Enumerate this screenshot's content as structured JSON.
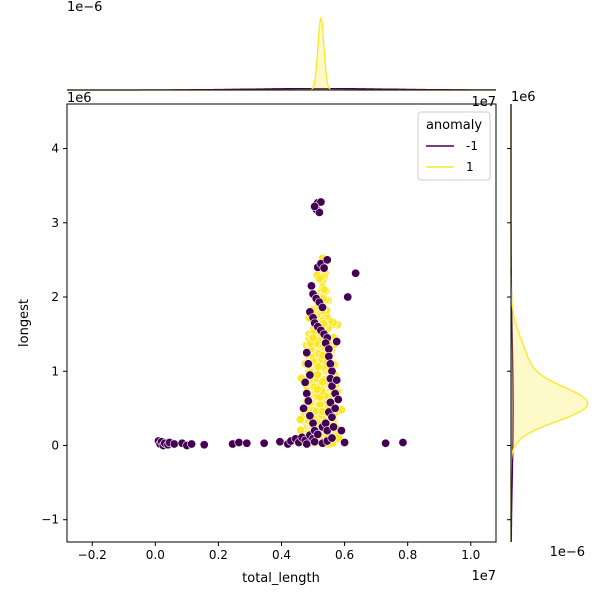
{
  "chart_data": {
    "type": "scatter",
    "subtype": "jointplot with marginal KDE",
    "title": "",
    "xlabel": "total_length",
    "ylabel": "longest",
    "xlim": [
      -0.28,
      1.08
    ],
    "ylim": [
      -1.3,
      4.6
    ],
    "x_offset_text": "1e7",
    "y_offset_text": "1e6",
    "top_marginal_offset_text": "1e−6",
    "right_marginal_offset_text": "1e−6",
    "right_marginal_y_offset_text": "1e6",
    "top_marginal_x_offset_text": "1e7",
    "xticks": [
      -0.2,
      0.0,
      0.2,
      0.4,
      0.6,
      0.8,
      1.0
    ],
    "xtick_labels": [
      "−0.2",
      "0.0",
      "0.2",
      "0.4",
      "0.6",
      "0.8",
      "1.0"
    ],
    "yticks": [
      -1,
      0,
      1,
      2,
      3,
      4
    ],
    "ytick_labels": [
      "−1",
      "0",
      "1",
      "2",
      "3",
      "4"
    ],
    "grid": false,
    "legend": {
      "title": "anomaly",
      "placement": "upper-right",
      "entries": [
        {
          "label": "-1",
          "color": "#440154"
        },
        {
          "label": "1",
          "color": "#fde725"
        }
      ]
    },
    "series": [
      {
        "name": "-1",
        "color": "#440154",
        "points": [
          [
            0.01,
            0.06
          ],
          [
            0.015,
            0.02
          ],
          [
            0.02,
            0.05
          ],
          [
            0.025,
            0.0
          ],
          [
            0.03,
            0.03
          ],
          [
            0.04,
            0.01
          ],
          [
            0.045,
            0.04
          ],
          [
            0.06,
            0.02
          ],
          [
            0.085,
            0.03
          ],
          [
            0.1,
            0.0
          ],
          [
            0.115,
            0.02
          ],
          [
            0.155,
            0.01
          ],
          [
            0.245,
            0.02
          ],
          [
            0.265,
            0.04
          ],
          [
            0.29,
            0.03
          ],
          [
            0.345,
            0.03
          ],
          [
            0.395,
            0.05
          ],
          [
            0.42,
            0.02
          ],
          [
            0.43,
            0.06
          ],
          [
            0.445,
            0.09
          ],
          [
            0.455,
            0.04
          ],
          [
            0.465,
            0.11
          ],
          [
            0.475,
            0.07
          ],
          [
            0.48,
            0.02
          ],
          [
            0.49,
            0.14
          ],
          [
            0.5,
            0.09
          ],
          [
            0.505,
            0.05
          ],
          [
            0.51,
            0.18
          ],
          [
            0.53,
            0.03
          ],
          [
            0.545,
            0.06
          ],
          [
            0.56,
            0.1
          ],
          [
            0.6,
            0.04
          ],
          [
            0.73,
            0.03
          ],
          [
            0.785,
            0.04
          ],
          [
            0.51,
            3.18
          ],
          [
            0.515,
            3.27
          ],
          [
            0.52,
            3.14
          ],
          [
            0.525,
            3.28
          ],
          [
            0.505,
            3.22
          ],
          [
            0.515,
            2.4
          ],
          [
            0.525,
            2.45
          ],
          [
            0.535,
            2.39
          ],
          [
            0.545,
            2.5
          ],
          [
            0.635,
            2.32
          ],
          [
            0.61,
            2.0
          ],
          [
            0.495,
            2.15
          ],
          [
            0.5,
            2.04
          ],
          [
            0.51,
            1.98
          ],
          [
            0.52,
            1.93
          ],
          [
            0.53,
            1.86
          ],
          [
            0.49,
            1.8
          ],
          [
            0.5,
            1.72
          ],
          [
            0.505,
            1.65
          ],
          [
            0.515,
            1.6
          ],
          [
            0.525,
            1.55
          ],
          [
            0.535,
            1.5
          ],
          [
            0.545,
            1.45
          ],
          [
            0.54,
            1.38
          ],
          [
            0.55,
            1.3
          ],
          [
            0.55,
            1.2
          ],
          [
            0.555,
            1.1
          ],
          [
            0.56,
            1.0
          ],
          [
            0.555,
            0.9
          ],
          [
            0.56,
            0.8
          ],
          [
            0.57,
            0.7
          ],
          [
            0.575,
            1.4
          ],
          [
            0.48,
            1.25
          ],
          [
            0.485,
            1.1
          ],
          [
            0.49,
            0.95
          ],
          [
            0.475,
            0.85
          ],
          [
            0.48,
            0.7
          ],
          [
            0.485,
            0.6
          ],
          [
            0.47,
            0.5
          ],
          [
            0.49,
            0.4
          ],
          [
            0.5,
            0.3
          ],
          [
            0.505,
            0.2
          ],
          [
            0.515,
            0.15
          ],
          [
            0.53,
            0.25
          ],
          [
            0.54,
            0.3
          ],
          [
            0.545,
            0.2
          ],
          [
            0.55,
            0.45
          ],
          [
            0.555,
            0.58
          ],
          [
            0.56,
            0.38
          ],
          [
            0.565,
            0.25
          ],
          [
            0.57,
            0.5
          ],
          [
            0.575,
            0.88
          ],
          [
            0.58,
            0.62
          ],
          [
            0.59,
            0.2
          ]
        ]
      },
      {
        "name": "1",
        "color": "#fde725",
        "clusters": [
          {
            "center": [
              0.525,
              0.7
            ],
            "spread": [
              0.022,
              0.4
            ],
            "count": 520,
            "seed": 7
          },
          {
            "center": [
              0.525,
              1.35
            ],
            "spread": [
              0.016,
              0.35
            ],
            "count": 120,
            "seed": 13
          },
          {
            "center": [
              0.53,
              2.0
            ],
            "spread": [
              0.01,
              0.22
            ],
            "count": 25,
            "seed": 21
          }
        ],
        "points": [
          [
            0.53,
            2.52
          ],
          [
            0.54,
            2.47
          ],
          [
            0.52,
            2.25
          ],
          [
            0.535,
            2.1
          ],
          [
            0.5,
            1.45
          ],
          [
            0.46,
            0.35
          ],
          [
            0.59,
            0.48
          ],
          [
            0.58,
            0.1
          ]
        ]
      }
    ],
    "top_marginal": {
      "type": "kde",
      "series": [
        {
          "name": "-1",
          "color": "#440154",
          "center": 0.52,
          "bandwidth": 0.22,
          "peak": 0.02
        },
        {
          "name": "1",
          "color": "#fde725",
          "center": 0.525,
          "bandwidth": 0.0095,
          "peak": 1.0
        }
      ]
    },
    "right_marginal": {
      "type": "kde",
      "series": [
        {
          "name": "-1",
          "color": "#440154",
          "components": [
            {
              "center": 0.5,
              "bandwidth": 0.9,
              "weight": 0.03
            }
          ]
        },
        {
          "name": "1",
          "color": "#fde725",
          "components": [
            {
              "center": 0.55,
              "bandwidth": 0.23,
              "weight": 1.0
            },
            {
              "center": 1.1,
              "bandwidth": 0.35,
              "weight": 0.22
            }
          ]
        }
      ]
    }
  }
}
